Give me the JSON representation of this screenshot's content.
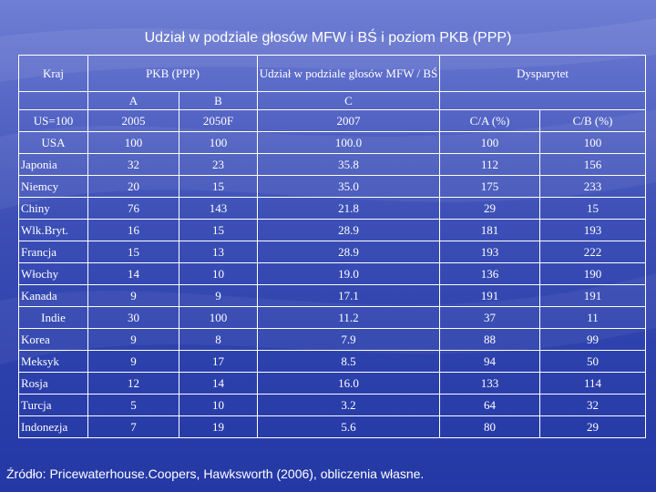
{
  "title": "Udział w podziale głosów MFW i BŚ i poziom PKB (PPP)",
  "header": {
    "kraj": "Kraj",
    "pkb": "PKB (PPP)",
    "udzial": "Udział w podziale głosów MFW / BŚ",
    "dysparytet": "Dysparytet",
    "col_a": "A",
    "col_b": "B",
    "col_c": "C",
    "base": "US=100",
    "y2005": "2005",
    "y2050": "2050F",
    "y2007": "2007",
    "ca": "C/A (%)",
    "cb": "C/B (%)"
  },
  "rows": [
    [
      "USA",
      "100",
      "100",
      "100.0",
      "100",
      "100"
    ],
    [
      "Japonia",
      "32",
      "23",
      "35.8",
      "112",
      "156"
    ],
    [
      "Niemcy",
      "20",
      "15",
      "35.0",
      "175",
      "233"
    ],
    [
      "Chiny",
      "76",
      "143",
      "21.8",
      "29",
      "15"
    ],
    [
      "Wlk.Bryt.",
      "16",
      "15",
      "28.9",
      "181",
      "193"
    ],
    [
      "Francja",
      "15",
      "13",
      "28.9",
      "193",
      "222"
    ],
    [
      "Włochy",
      "14",
      "10",
      "19.0",
      "136",
      "190"
    ],
    [
      "Kanada",
      "9",
      "9",
      "17.1",
      "191",
      "191"
    ],
    [
      "Indie",
      "30",
      "100",
      "11.2",
      "37",
      "11"
    ],
    [
      "Korea",
      "9",
      "8",
      "7.9",
      "88",
      "99"
    ],
    [
      "Meksyk",
      "9",
      "17",
      "8.5",
      "94",
      "50"
    ],
    [
      "Rosja",
      "12",
      "14",
      "16.0",
      "133",
      "114"
    ],
    [
      "Turcja",
      "5",
      "10",
      "3.2",
      "64",
      "32"
    ],
    [
      "Indonezja",
      "7",
      "19",
      "5.6",
      "80",
      "29"
    ]
  ],
  "source": "Źródło: Pricewaterhouse.Coopers, Hawksworth (2006), obliczenia własne."
}
